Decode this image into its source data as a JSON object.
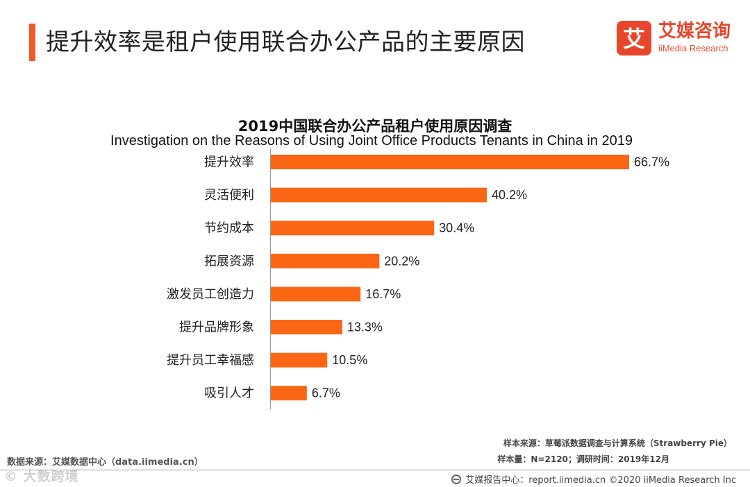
{
  "header": {
    "title": "提升效率是租户使用联合办公产品的主要原因"
  },
  "logo": {
    "glyph": "艾",
    "cn": "艾媒咨询",
    "en": "iiMedia Research"
  },
  "chart_data": {
    "type": "bar",
    "orientation": "horizontal",
    "title": "2019中国联合办公产品租户使用原因调查",
    "subtitle": "Investigation on the Reasons of Using Joint Office Products Tenants in China in 2019",
    "categories": [
      "提升效率",
      "灵活便利",
      "节约成本",
      "拓展资源",
      "激发员工创造力",
      "提升品牌形象",
      "提升员工幸福感",
      "吸引人才"
    ],
    "values": [
      66.7,
      40.2,
      30.4,
      20.2,
      16.7,
      13.3,
      10.5,
      6.7
    ],
    "value_labels": [
      "66.7%",
      "40.2%",
      "30.4%",
      "20.2%",
      "16.7%",
      "13.3%",
      "10.5%",
      "6.7%"
    ],
    "xlim": [
      0,
      66.7
    ],
    "bar_color": "#fa6614",
    "grid": false,
    "xlabel": "",
    "ylabel": ""
  },
  "notes": {
    "sample_source": "样本来源：草莓派数据调查与计算系统（Strawberry Pie）",
    "sample_size": "样本量：N=2120；调研时间：2019年12月"
  },
  "data_source": "数据来源：艾媒数据中心（data.iimedia.cn）",
  "watermark": "© 大数跨境",
  "footer": {
    "text": "艾媒报告中心：report.iimedia.cn ©2020  iiMedia Research  Inc"
  },
  "colors": {
    "accent": "#f05a28",
    "brand": "#e8462c",
    "bar": "#fa6614"
  }
}
